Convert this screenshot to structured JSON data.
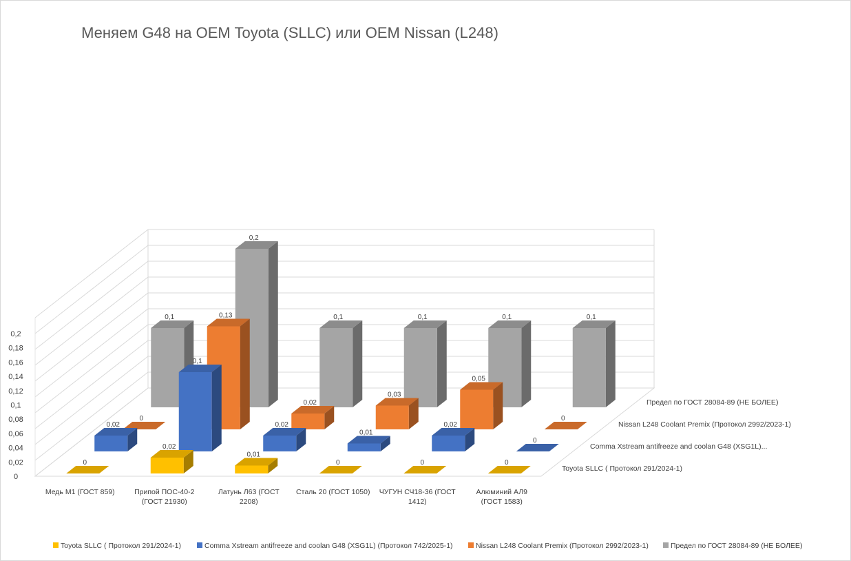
{
  "chart_data": {
    "type": "bar",
    "subtype": "3d-column",
    "title": "Меняем G48 на OEM Toyota (SLLC) или OEM Nissan (L248)",
    "xlabel": "",
    "ylabel": "",
    "ylim": [
      0,
      0.2
    ],
    "y_ticks": [
      "0",
      "0,02",
      "0,04",
      "0,06",
      "0,08",
      "0,1",
      "0,12",
      "0,14",
      "0,16",
      "0,18",
      "0,2"
    ],
    "grid": true,
    "legend_position": "bottom",
    "categories": [
      [
        "Медь М1 (ГОСТ 859)"
      ],
      [
        "Припой ПОС-40-2",
        "(ГОСТ 21930)"
      ],
      [
        "Латунь Л63 (ГОСТ",
        "2208)"
      ],
      [
        "Сталь 20 (ГОСТ 1050)"
      ],
      [
        "ЧУГУН СЧ18-36 (ГОСТ",
        "1412)"
      ],
      [
        "Алюминий АЛ9",
        "(ГОСТ 1583)"
      ]
    ],
    "depth_labels": [
      "Toyota SLLC  ( Протокол 291/2024-1)",
      "Comma Xstream antifreeze and coolan G48 (XSG1L)...",
      "Nissan L248 Coolant Premix (Протокол 2992/2023-1)",
      "Предел по ГОСТ 28084-89 (НЕ БОЛЕЕ)"
    ],
    "series": [
      {
        "name": "Toyota SLLC  ( Протокол 291/2024-1)",
        "color": "#ffc000",
        "values": [
          0,
          0.02,
          0.01,
          0,
          0,
          0
        ],
        "labels": [
          "0",
          "0,02",
          "0,01",
          "0",
          "0",
          "0"
        ]
      },
      {
        "name": "Comma Xstream antifreeze and coolan G48 (XSG1L) (Протокол 742/2025-1)",
        "color": "#4472c4",
        "values": [
          0.02,
          0.1,
          0.02,
          0.01,
          0.02,
          0
        ],
        "labels": [
          "0,02",
          "0,1",
          "0,02",
          "0,01",
          "0,02",
          "0"
        ]
      },
      {
        "name": "Nissan L248 Coolant Premix (Протокол 2992/2023-1)",
        "color": "#ed7d31",
        "values": [
          0,
          0.13,
          0.02,
          0.03,
          0.05,
          0
        ],
        "labels": [
          "0",
          "0,13",
          "0,02",
          "0,03",
          "0,05",
          "0"
        ]
      },
      {
        "name": "Предел по ГОСТ 28084-89 (НЕ БОЛЕЕ)",
        "color": "#a5a5a5",
        "values": [
          0.1,
          0.2,
          0.1,
          0.1,
          0.1,
          0.1
        ],
        "labels": [
          "0,1",
          "0,2",
          "0,1",
          "0,1",
          "0,1",
          "0,1"
        ]
      }
    ]
  }
}
